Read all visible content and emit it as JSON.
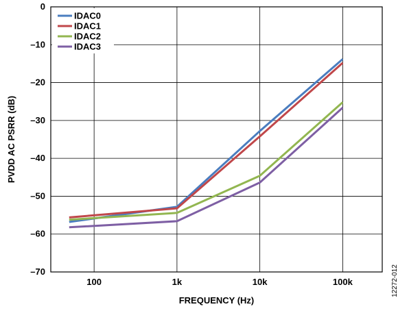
{
  "chart_data": {
    "type": "line",
    "xlabel": "FREQUENCY (Hz)",
    "ylabel": "PVDD AC PSRR (dB)",
    "x_scale": "log",
    "xlim": [
      30,
      300000
    ],
    "ylim": [
      -70,
      0
    ],
    "x_ticks": [
      {
        "value": 100,
        "label": "100"
      },
      {
        "value": 1000,
        "label": "1k"
      },
      {
        "value": 10000,
        "label": "10k"
      },
      {
        "value": 100000,
        "label": "100k"
      }
    ],
    "y_ticks": [
      {
        "value": 0,
        "label": "0"
      },
      {
        "value": -10,
        "label": "–10"
      },
      {
        "value": -20,
        "label": "–20"
      },
      {
        "value": -30,
        "label": "–30"
      },
      {
        "value": -40,
        "label": "–40"
      },
      {
        "value": -50,
        "label": "–50"
      },
      {
        "value": -60,
        "label": "–60"
      },
      {
        "value": -70,
        "label": "–70"
      }
    ],
    "grid": true,
    "legend_position": "top-left",
    "x": [
      50,
      1000,
      10000,
      100000
    ],
    "series": [
      {
        "name": "IDAC0",
        "color": "#4a7dbf",
        "values": [
          -56.8,
          -52.8,
          -32.8,
          -13.8
        ]
      },
      {
        "name": "IDAC1",
        "color": "#c0474a",
        "values": [
          -55.6,
          -53.2,
          -34.2,
          -14.8
        ]
      },
      {
        "name": "IDAC2",
        "color": "#92b650",
        "values": [
          -56.2,
          -54.4,
          -44.6,
          -25.2
        ]
      },
      {
        "name": "IDAC3",
        "color": "#7e5fa4",
        "values": [
          -58.2,
          -56.6,
          -46.4,
          -26.6
        ]
      }
    ]
  },
  "figure_id": "12272-012"
}
